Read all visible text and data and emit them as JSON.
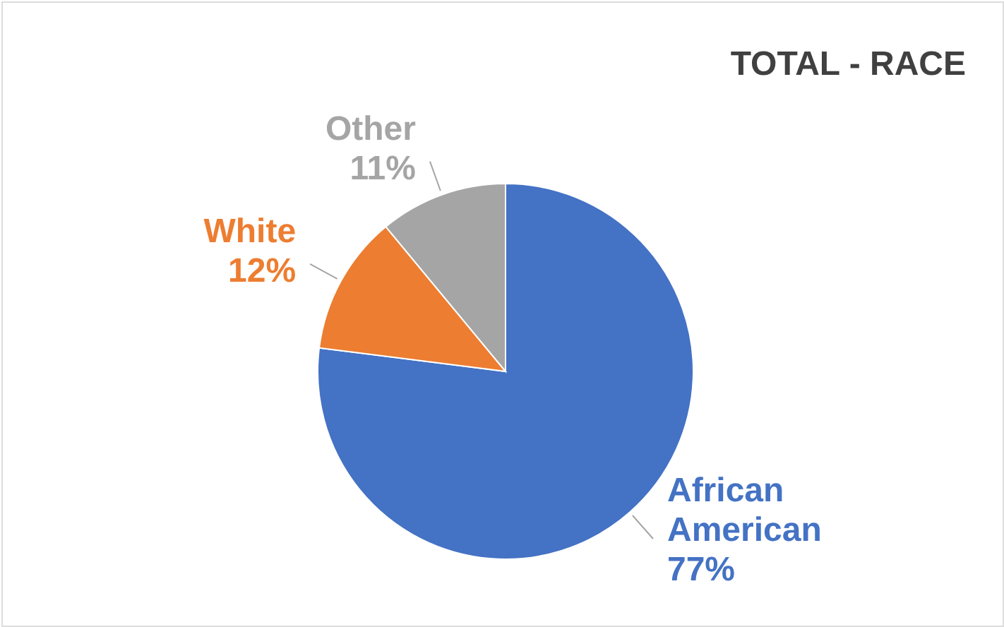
{
  "chart_data": {
    "type": "pie",
    "title": "TOTAL - RACE",
    "categories": [
      "African American",
      "White",
      "Other"
    ],
    "values": [
      77,
      12,
      11
    ],
    "colors": [
      "#4472c4",
      "#ed7d31",
      "#a5a5a5"
    ],
    "value_labels": [
      "77%",
      "12%",
      "11%"
    ],
    "legend": false
  }
}
